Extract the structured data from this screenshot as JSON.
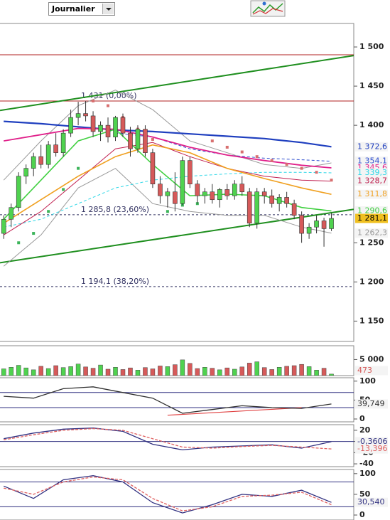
{
  "toolbar": {
    "period": "Journalier"
  },
  "chart_data": [
    {
      "type": "candlestick",
      "xlim": [
        -0.5,
        47
      ],
      "ylim": [
        1124,
        1530
      ],
      "yticks": [
        {
          "value": 1500,
          "label": "1 500"
        },
        {
          "value": 1450,
          "label": "1 450"
        },
        {
          "value": 1400,
          "label": "1 400"
        },
        {
          "value": 1250,
          "label": "1 250"
        },
        {
          "value": 1200,
          "label": "1 200"
        },
        {
          "value": 1150,
          "label": "1 150"
        }
      ],
      "up_color": "#4fd24f",
      "down_color": "#d65a5a",
      "open": [
        1262,
        1280,
        1295,
        1335,
        1345,
        1360,
        1350,
        1375,
        1365,
        1390,
        1410,
        1415,
        1412,
        1392,
        1400,
        1385,
        1410,
        1390,
        1370,
        1395,
        1365,
        1325,
        1310,
        1315,
        1300,
        1355,
        1325,
        1310,
        1315,
        1305,
        1318,
        1310,
        1325,
        1315,
        1275,
        1315,
        1310,
        1300,
        1308,
        1300,
        1285,
        1262,
        1270,
        1278,
        1268
      ],
      "high": [
        1285,
        1300,
        1340,
        1350,
        1365,
        1375,
        1380,
        1390,
        1395,
        1420,
        1430,
        1431,
        1418,
        1405,
        1410,
        1412,
        1415,
        1398,
        1400,
        1400,
        1370,
        1335,
        1320,
        1340,
        1360,
        1360,
        1330,
        1320,
        1325,
        1320,
        1325,
        1330,
        1335,
        1320,
        1320,
        1320,
        1318,
        1312,
        1315,
        1305,
        1290,
        1275,
        1285,
        1282,
        1288
      ],
      "low": [
        1255,
        1270,
        1290,
        1325,
        1335,
        1345,
        1345,
        1360,
        1360,
        1385,
        1400,
        1405,
        1385,
        1380,
        1378,
        1380,
        1385,
        1360,
        1365,
        1360,
        1320,
        1300,
        1295,
        1290,
        1298,
        1320,
        1300,
        1300,
        1300,
        1295,
        1305,
        1305,
        1310,
        1270,
        1268,
        1300,
        1295,
        1290,
        1295,
        1280,
        1250,
        1255,
        1262,
        1245,
        1265
      ],
      "close": [
        1280,
        1295,
        1335,
        1345,
        1360,
        1350,
        1375,
        1365,
        1390,
        1410,
        1415,
        1412,
        1392,
        1400,
        1385,
        1410,
        1390,
        1370,
        1395,
        1365,
        1325,
        1310,
        1315,
        1300,
        1355,
        1325,
        1310,
        1315,
        1305,
        1318,
        1310,
        1325,
        1315,
        1275,
        1315,
        1310,
        1300,
        1308,
        1300,
        1285,
        1262,
        1270,
        1278,
        1268,
        1281.1
      ],
      "last_label": "1 281,1",
      "last_label_color": "#f0c020",
      "overlays": [
        {
          "color": "#999999",
          "x": [
            0,
            5,
            10,
            15,
            20,
            25,
            30,
            35,
            40,
            44
          ],
          "values": [
            1330,
            1380,
            1425,
            1445,
            1420,
            1380,
            1365,
            1350,
            1345,
            1352
          ]
        },
        {
          "color": "#999999",
          "x": [
            0,
            5,
            10,
            15,
            20,
            25,
            30,
            35,
            40,
            44
          ],
          "values": [
            1220,
            1260,
            1320,
            1345,
            1300,
            1290,
            1285,
            1285,
            1270,
            1262.3
          ],
          "end_label": "1 262,3"
        },
        {
          "color": "#1f3fbf",
          "width": 2.2,
          "x": [
            0,
            5,
            10,
            15,
            20,
            25,
            30,
            35,
            40,
            44
          ],
          "values": [
            1405,
            1402,
            1398,
            1394,
            1392,
            1389,
            1386,
            1383,
            1378,
            1372.6
          ],
          "end_label": "1 372,6"
        },
        {
          "color": "#3050d0",
          "dash": true,
          "x": [
            0,
            5,
            10,
            15,
            20,
            25,
            30,
            35,
            40,
            44
          ],
          "values": [
            null,
            null,
            null,
            1390,
            1385,
            1370,
            1362,
            1358,
            1356,
            1354.1
          ],
          "end_label": "1 354,1"
        },
        {
          "color": "#e0208a",
          "width": 1.8,
          "x": [
            0,
            5,
            10,
            15,
            20,
            25,
            30,
            35,
            40,
            44
          ],
          "values": [
            1380,
            1388,
            1396,
            1395,
            1385,
            1372,
            1362,
            1355,
            1349,
            1345.6
          ],
          "end_label": "1 345,6"
        },
        {
          "color": "#30d8e8",
          "dash": true,
          "x": [
            0,
            5,
            10,
            15,
            20,
            25,
            30,
            35,
            40,
            44
          ],
          "values": [
            1270,
            1280,
            1300,
            1320,
            1330,
            1335,
            1338,
            1340,
            1340,
            1339.3
          ],
          "end_label": "1 339,3"
        },
        {
          "color": "#c02050",
          "x": [
            0,
            5,
            10,
            15,
            20,
            25,
            30,
            35,
            40,
            44
          ],
          "values": [
            1260,
            1290,
            1330,
            1370,
            1378,
            1360,
            1345,
            1335,
            1330,
            1328.7
          ],
          "end_label": "1 328,7"
        },
        {
          "color": "#f0a020",
          "width": 1.6,
          "x": [
            0,
            5,
            10,
            15,
            20,
            25,
            30,
            35,
            40,
            44
          ],
          "values": [
            1275,
            1305,
            1335,
            1360,
            1375,
            1365,
            1345,
            1332,
            1320,
            1311.8
          ],
          "end_label": "1 311,8"
        },
        {
          "color": "#40d040",
          "width": 1.6,
          "x": [
            0,
            5,
            10,
            15,
            20,
            25,
            30,
            35,
            40,
            44
          ],
          "values": [
            1280,
            1330,
            1380,
            1395,
            1350,
            1310,
            1312,
            1310,
            1295,
            1290.6
          ],
          "end_label": "1 290,6"
        }
      ],
      "sar": {
        "color_up": "#3cb45a",
        "color_down": "#d87070",
        "x": [
          2,
          4,
          6,
          8,
          10,
          12,
          14,
          16,
          18,
          20,
          22,
          24,
          26,
          28,
          30,
          32,
          34,
          36,
          38,
          40,
          42,
          44
        ],
        "values": [
          1250,
          1262,
          1290,
          1318,
          1345,
          1431,
          1425,
          1410,
          1395,
          1382,
          1290,
          1298,
          1300,
          1380,
          1372,
          1366,
          1360,
          1355,
          1350,
          1345,
          1340,
          1330
        ]
      },
      "levels": [
        {
          "value": 1490,
          "color": "#b02020"
        },
        {
          "value": 1431,
          "color": "#b02020",
          "label": "1 431 (0,00%)"
        },
        {
          "value": 1285.8,
          "color": "#303060",
          "dash": true,
          "label": "1 285,8 (23,60%)"
        },
        {
          "value": 1194.1,
          "color": "#303060",
          "dash": true,
          "label": "1 194,1 (38,20%)"
        }
      ],
      "trendlines": [
        {
          "color": "#1f8f1f",
          "x": [
            -0.5,
            47
          ],
          "values": [
            1419,
            1489
          ]
        },
        {
          "color": "#1f8f1f",
          "x": [
            -0.5,
            47
          ],
          "values": [
            1224.5,
            1292.7
          ]
        }
      ]
    },
    {
      "type": "bar",
      "xlim": [
        -0.5,
        47
      ],
      "ylim": [
        0,
        9300
      ],
      "yticks": [
        {
          "value": 5000,
          "label": "5 000"
        }
      ],
      "values": [
        2100,
        2600,
        3200,
        2400,
        1800,
        2900,
        2200,
        3100,
        2500,
        2800,
        3600,
        2700,
        2300,
        3300,
        2000,
        2600,
        1900,
        2400,
        1700,
        2500,
        2100,
        3000,
        2800,
        3400,
        4900,
        3800,
        2200,
        2600,
        2300,
        1800,
        2400,
        2000,
        2700,
        3900,
        4300,
        2500,
        1900,
        2600,
        2900,
        3100,
        3500,
        2800,
        1700,
        2300,
        473
      ],
      "end_label": "473",
      "end_label_color": "#d65a5a"
    },
    {
      "type": "line",
      "xlim": [
        -0.5,
        47
      ],
      "ylim": [
        -7.5,
        109
      ],
      "yticks": [
        100,
        50,
        0
      ],
      "levels": [
        70,
        30
      ],
      "x": [
        0,
        4,
        8,
        12,
        16,
        20,
        24,
        28,
        32,
        36,
        40,
        44
      ],
      "series": [
        {
          "color": "#303030",
          "values": [
            60,
            55,
            80,
            85,
            70,
            55,
            15,
            25,
            35,
            30,
            28,
            39.749
          ],
          "end_label": "39,749"
        }
      ],
      "trendlines": [
        {
          "color": "#e04040",
          "x": [
            22,
            40
          ],
          "values": [
            10,
            30
          ]
        }
      ]
    },
    {
      "type": "line",
      "xlim": [
        -0.5,
        47
      ],
      "ylim": [
        -45,
        30
      ],
      "yticks": [
        20,
        0,
        -20,
        -40
      ],
      "levels": [
        0
      ],
      "x": [
        0,
        4,
        8,
        12,
        16,
        20,
        24,
        28,
        32,
        36,
        40,
        44
      ],
      "series": [
        {
          "color": "#303080",
          "values": [
            5,
            15,
            22,
            24,
            18,
            -5,
            -15,
            -10,
            -8,
            -6,
            -12,
            -0.3606
          ],
          "end_label": "-0,3606"
        },
        {
          "color": "#e06060",
          "dash": true,
          "values": [
            3,
            12,
            20,
            23,
            20,
            5,
            -10,
            -12,
            -9,
            -7,
            -10,
            -13.396
          ],
          "end_label": "-13,396"
        }
      ]
    },
    {
      "type": "line",
      "xlim": [
        -0.5,
        47
      ],
      "ylim": [
        -12,
        110
      ],
      "yticks": [
        100,
        50,
        0
      ],
      "levels": [
        80,
        20
      ],
      "x": [
        0,
        4,
        8,
        12,
        16,
        20,
        24,
        28,
        32,
        36,
        40,
        44
      ],
      "series": [
        {
          "color": "#303080",
          "values": [
            70,
            40,
            85,
            95,
            80,
            30,
            5,
            25,
            50,
            45,
            60,
            30.54
          ],
          "end_label": "30,540"
        },
        {
          "color": "#e06060",
          "dash": true,
          "values": [
            65,
            50,
            80,
            92,
            85,
            40,
            10,
            20,
            45,
            48,
            55,
            25
          ]
        }
      ]
    }
  ]
}
